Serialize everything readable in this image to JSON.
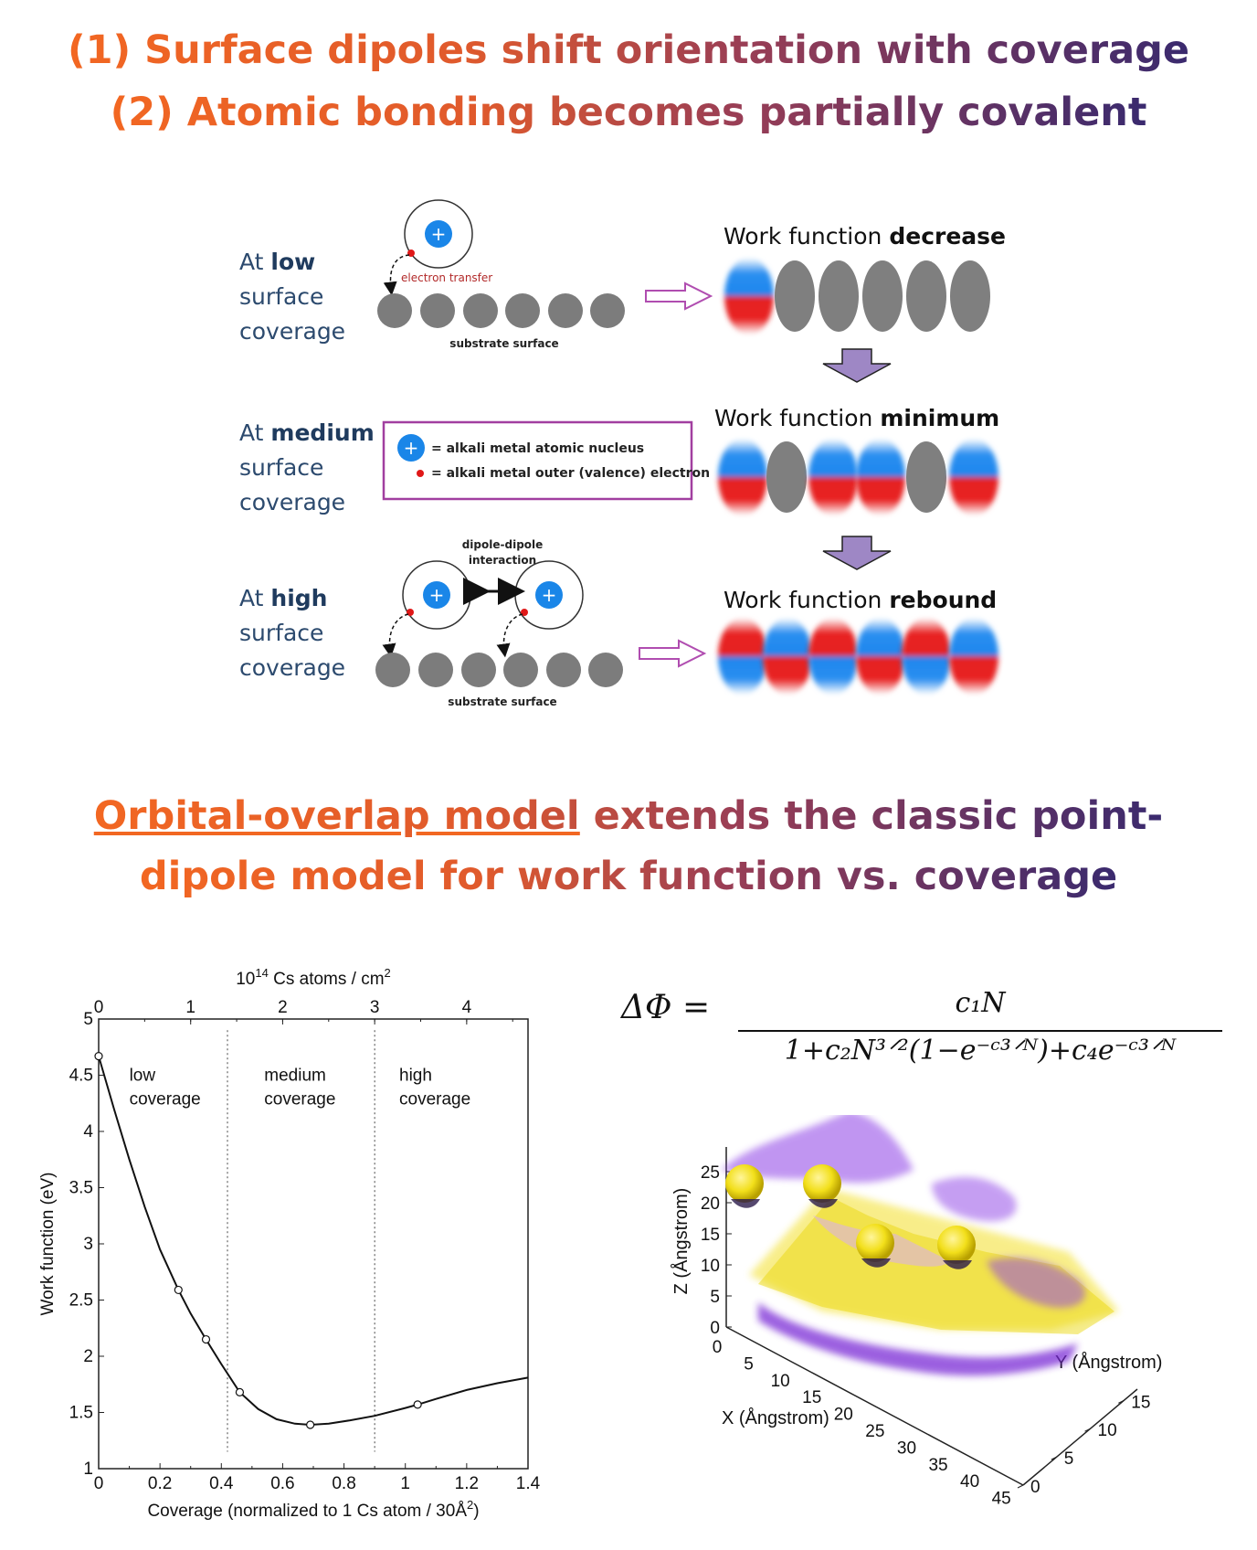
{
  "headline": {
    "line1_num": "(1)",
    "line1_text": "Surface dipoles shift orientation with coverage",
    "line2_num": "(2)",
    "line2_text": "Atomic bonding becomes partially covalent"
  },
  "diagram": {
    "rows": [
      {
        "prefix": "At",
        "level": "low",
        "line2": "surface",
        "line3": "coverage",
        "wf_prefix": "Work function",
        "wf_bold": "decrease"
      },
      {
        "prefix": "At",
        "level": "medium",
        "line2": "surface",
        "line3": "coverage",
        "wf_prefix": "Work function",
        "wf_bold": "minimum"
      },
      {
        "prefix": "At",
        "level": "high",
        "line2": "surface",
        "line3": "coverage",
        "wf_prefix": "Work function",
        "wf_bold": "rebound"
      }
    ],
    "electron_transfer": "electron transfer",
    "substrate_surface": "substrate surface",
    "dipole_interaction_1": "dipole-dipole",
    "dipole_interaction_2": "interaction",
    "legend": {
      "nucleus": "= alkali metal atomic nucleus",
      "electron": "= alkali metal outer (valence) electron"
    },
    "plus": "+"
  },
  "subheadline": {
    "underlined": "Orbital-overlap model",
    "line1_rest": " extends the classic point-",
    "line2": "dipole model for work function vs. coverage"
  },
  "chart_data": {
    "type": "line",
    "top_axis_label": "10^14 Cs atoms / cm^2",
    "top_axis_base": "10",
    "top_axis_exp": "14",
    "top_axis_unit": "Cs atoms / cm",
    "top_axis_unit_exp": "2",
    "top_ticks": [
      "0",
      "1",
      "2",
      "3",
      "4"
    ],
    "xlabel": "Coverage (normalized to 1 Cs atom / 30Å",
    "xlabel_exp": "2",
    "xlabel_close": ")",
    "ylabel": "Work function (eV)",
    "x_ticks": [
      "0",
      "0.2",
      "0.4",
      "0.6",
      "0.8",
      "1",
      "1.2",
      "1.4"
    ],
    "y_ticks": [
      "1",
      "1.5",
      "2",
      "2.5",
      "3",
      "3.5",
      "4",
      "4.5",
      "5"
    ],
    "xlim": [
      0,
      1.4
    ],
    "ylim": [
      1,
      5
    ],
    "regions": [
      {
        "line1": "low",
        "line2": "coverage"
      },
      {
        "line1": "medium",
        "line2": "coverage"
      },
      {
        "line1": "high",
        "line2": "coverage"
      }
    ],
    "dividers_x": [
      0.42,
      0.9
    ],
    "points": [
      [
        0,
        4.67
      ],
      [
        0.26,
        2.59
      ],
      [
        0.35,
        2.15
      ],
      [
        0.46,
        1.68
      ],
      [
        0.69,
        1.39
      ],
      [
        1.04,
        1.57
      ]
    ],
    "curve": [
      [
        0,
        4.67
      ],
      [
        0.05,
        4.2
      ],
      [
        0.1,
        3.75
      ],
      [
        0.15,
        3.33
      ],
      [
        0.2,
        2.95
      ],
      [
        0.26,
        2.59
      ],
      [
        0.3,
        2.38
      ],
      [
        0.35,
        2.15
      ],
      [
        0.4,
        1.93
      ],
      [
        0.46,
        1.68
      ],
      [
        0.52,
        1.53
      ],
      [
        0.58,
        1.44
      ],
      [
        0.64,
        1.4
      ],
      [
        0.69,
        1.39
      ],
      [
        0.75,
        1.4
      ],
      [
        0.82,
        1.43
      ],
      [
        0.9,
        1.47
      ],
      [
        1.0,
        1.54
      ],
      [
        1.04,
        1.57
      ],
      [
        1.1,
        1.62
      ],
      [
        1.2,
        1.7
      ],
      [
        1.3,
        1.76
      ],
      [
        1.4,
        1.81
      ]
    ]
  },
  "formula": {
    "lhs": "ΔΦ =",
    "numerator": "c₁N",
    "denominator": "1+c₂N³ᐟ²(1−e⁻ᶜ³ᐟᴺ)+c₄e⁻ᶜ³ᐟᴺ"
  },
  "plot3d": {
    "z_label": "Z (Ångstrom)",
    "x_label": "X (Ångstrom)",
    "y_label": "Y (Ångstrom)",
    "z_ticks": [
      "0",
      "5",
      "10",
      "15",
      "20",
      "25"
    ],
    "x_ticks": [
      "0",
      "5",
      "10",
      "15",
      "20",
      "25",
      "30",
      "35",
      "40",
      "45"
    ],
    "y_ticks": [
      "0",
      "5",
      "10",
      "15"
    ]
  }
}
